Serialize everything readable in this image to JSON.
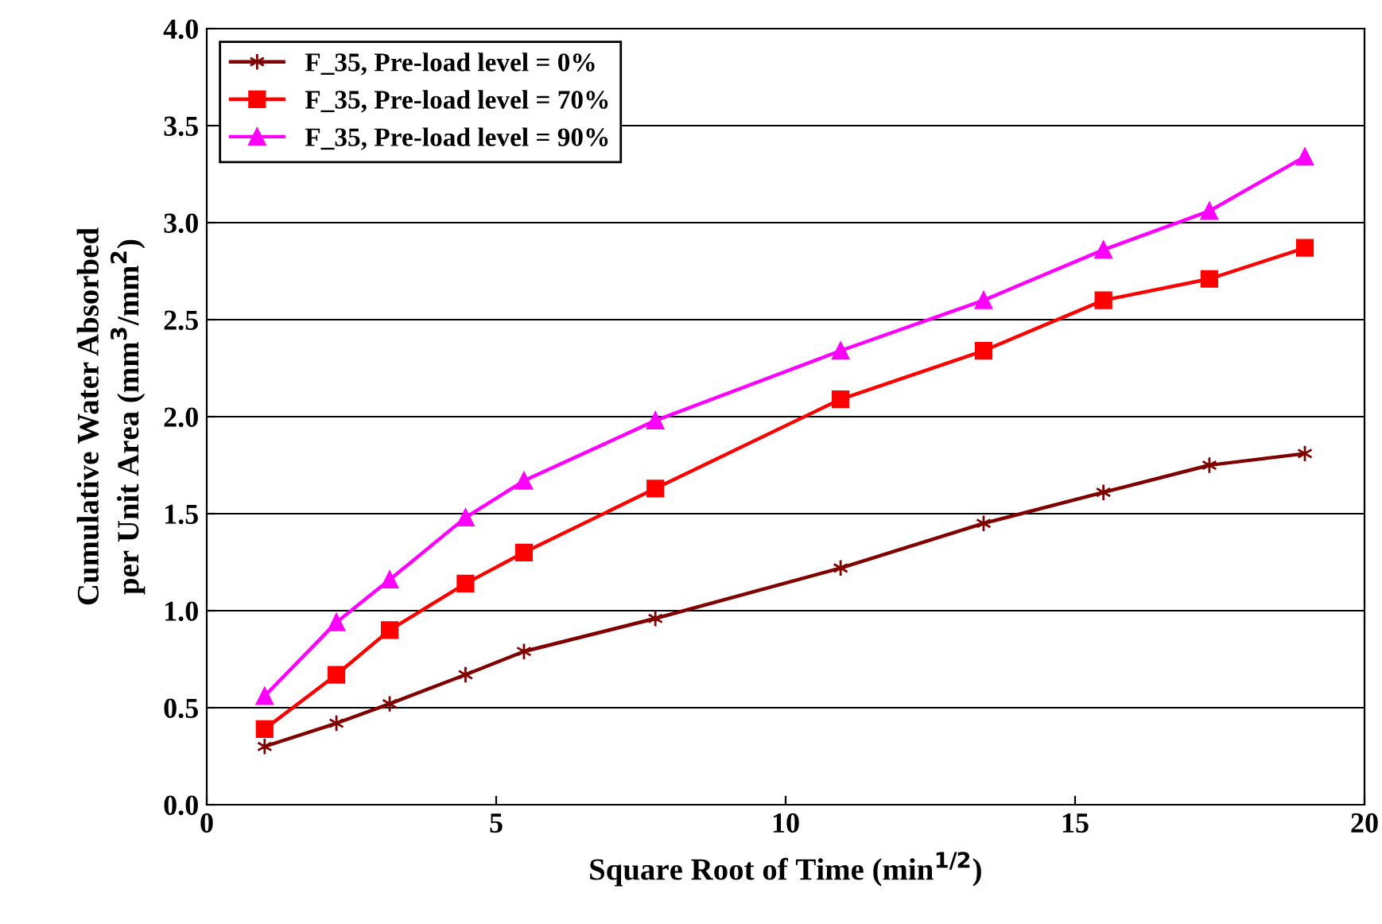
{
  "chart_data": {
    "type": "line",
    "xlabel": "Square Root of Time (min$^{1/2}$)",
    "ylabel": "Cumulative Water Absorbed\nper Unit Area (mm$^{3}$/mm$^{2}$)",
    "x": [
      1,
      2.24,
      3.16,
      4.47,
      5.48,
      7.75,
      10.95,
      13.42,
      15.49,
      17.32,
      18.97
    ],
    "series": [
      {
        "name": "F_35, Pre-load level = 0%",
        "color": "#800000",
        "marker": "cross",
        "values": [
          0.3,
          0.42,
          0.52,
          0.67,
          0.79,
          0.96,
          1.22,
          1.45,
          1.61,
          1.75,
          1.81
        ]
      },
      {
        "name": "F_35, Pre-load level = 70%",
        "color": "#ff0000",
        "marker": "square",
        "values": [
          0.39,
          0.67,
          0.9,
          1.14,
          1.3,
          1.63,
          2.09,
          2.34,
          2.6,
          2.71,
          2.87
        ]
      },
      {
        "name": "F_35, Pre-load level = 90%",
        "color": "#ff00ff",
        "marker": "triangle",
        "values": [
          0.56,
          0.94,
          1.16,
          1.48,
          1.67,
          1.98,
          2.34,
          2.6,
          2.86,
          3.06,
          3.34
        ]
      }
    ],
    "xlim": [
      0,
      20
    ],
    "xticks": [
      0,
      5,
      10,
      15,
      20
    ],
    "ylim": [
      0,
      4
    ],
    "yticks": [
      {
        "value": 0,
        "label": "0.0"
      },
      {
        "value": 0.5,
        "label": "0.5"
      },
      {
        "value": 1,
        "label": "1.0"
      },
      {
        "value": 1.5,
        "label": "1.5"
      },
      {
        "value": 2,
        "label": "2.0"
      },
      {
        "value": 2.5,
        "label": "2.5"
      },
      {
        "value": 3,
        "label": "3.0"
      },
      {
        "value": 3.5,
        "label": "3.5"
      },
      {
        "value": 4,
        "label": "4.0"
      }
    ],
    "grid": "y",
    "legend": "top left",
    "line_style": "solid"
  }
}
